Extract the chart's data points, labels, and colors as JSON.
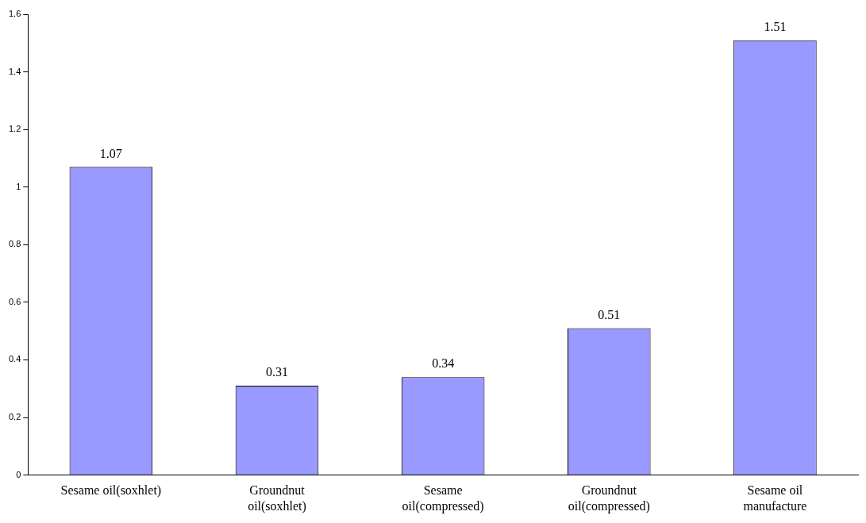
{
  "chart_data": {
    "type": "bar",
    "categories": [
      "Sesame oil(soxhlet)",
      "Groundnut\noil(soxhlet)",
      "Sesame\noil(compressed)",
      "Groundnut\noil(compressed)",
      "Sesame oil\nmanufacture"
    ],
    "values": [
      1.07,
      0.31,
      0.34,
      0.51,
      1.51
    ],
    "color": "#9999ff",
    "ylim": [
      0,
      1.6
    ],
    "yticks": [
      0,
      0.2,
      0.4,
      0.6,
      0.8,
      1,
      1.2,
      1.4,
      1.6
    ],
    "grid": false,
    "legend": false,
    "data_labels": true
  }
}
